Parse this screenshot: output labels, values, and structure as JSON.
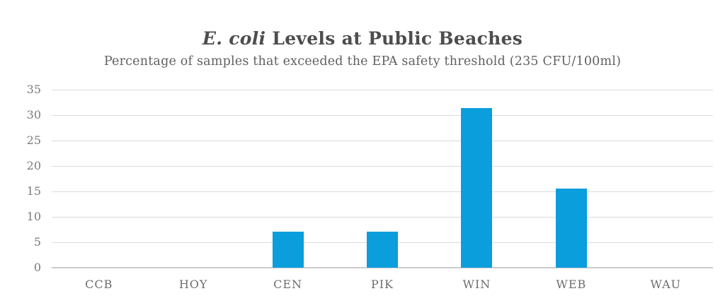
{
  "header": {
    "title_italic": "E. coli",
    "title_rest": " Levels at Public Beaches",
    "subtitle": "Percentage of samples that exceeded the EPA safety threshold (235 CFU/100ml)"
  },
  "chart_data": {
    "type": "bar",
    "title": "E. coli Levels at Public Beaches",
    "subtitle": "Percentage of samples that exceeded the EPA safety threshold (235 CFU/100ml)",
    "categories": [
      "CCB",
      "HOY",
      "CEN",
      "PIK",
      "WIN",
      "WEB",
      "WAU"
    ],
    "values": [
      0,
      0,
      7.1,
      7.1,
      31.4,
      15.6,
      0
    ],
    "xlabel": "",
    "ylabel": "",
    "ylim": [
      0,
      35
    ],
    "yticks": [
      0,
      5,
      10,
      15,
      20,
      25,
      30,
      35
    ],
    "grid": true,
    "legend": false,
    "bar_color": "#0a9edd"
  },
  "colors": {
    "bar": "#0a9edd",
    "gridline": "#dcdcdc",
    "baseline": "#cccccc",
    "title": "#4d4d4d",
    "subtitle": "#616161",
    "y_tick": "#7b7b7b",
    "x_tick": "#6e6e6e"
  }
}
